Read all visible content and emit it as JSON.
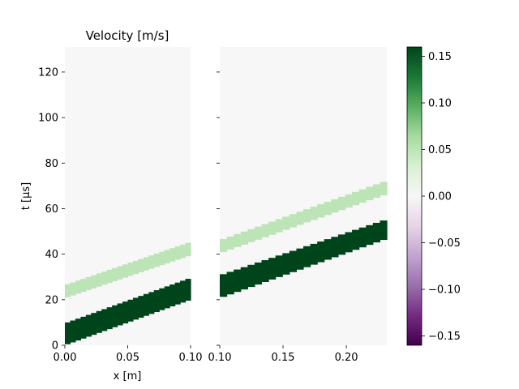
{
  "chart_data": {
    "type": "heatmap",
    "title": "Velocity [m/s]",
    "xlabel": "x [m]",
    "ylabel": "t [μs]",
    "colormap": "PRGn",
    "background_value": 0.0,
    "panels": [
      {
        "xlim": [
          0.0,
          0.1
        ],
        "ylim": [
          0,
          131
        ],
        "xticks": [
          0.0,
          0.05,
          0.1
        ],
        "xtick_labels": [
          "0.00",
          "0.05",
          "0.10"
        ],
        "yticks": [
          0,
          20,
          40,
          60,
          80,
          100,
          120
        ],
        "ytick_labels": [
          "0",
          "20",
          "40",
          "60",
          "80",
          "100",
          "120"
        ],
        "bands": [
          {
            "value": 0.16,
            "x": [
              0.0,
              0.1
            ],
            "t_lower": [
              0,
              20
            ],
            "t_upper": [
              9.6,
              29.6
            ]
          },
          {
            "value": 0.05,
            "x": [
              0.0,
              0.1
            ],
            "t_lower": [
              20.7,
              39.5
            ],
            "t_upper": [
              26.4,
              45.4
            ]
          }
        ]
      },
      {
        "xlim": [
          0.1,
          0.232
        ],
        "ylim": [
          0,
          131
        ],
        "xticks": [
          0.1,
          0.15,
          0.2
        ],
        "xtick_labels": [
          "0.10",
          "0.15",
          "0.20"
        ],
        "bands": [
          {
            "value": 0.16,
            "x": [
              0.1,
              0.232
            ],
            "t_lower": [
              20.7,
              46.8
            ],
            "t_upper": [
              30.7,
              55.3
            ]
          },
          {
            "value": 0.05,
            "x": [
              0.1,
              0.232
            ],
            "t_lower": [
              40.4,
              66.4
            ],
            "t_upper": [
              46.1,
              72.3
            ]
          }
        ]
      }
    ],
    "colorbar": {
      "vmin": -0.16,
      "vmax": 0.16,
      "ticks": [
        -0.15,
        -0.1,
        -0.05,
        0.0,
        0.05,
        0.1,
        0.15
      ],
      "tick_labels": [
        "−0.15",
        "−0.10",
        "−0.05",
        "0.00",
        "0.05",
        "0.10",
        "0.15"
      ]
    }
  }
}
